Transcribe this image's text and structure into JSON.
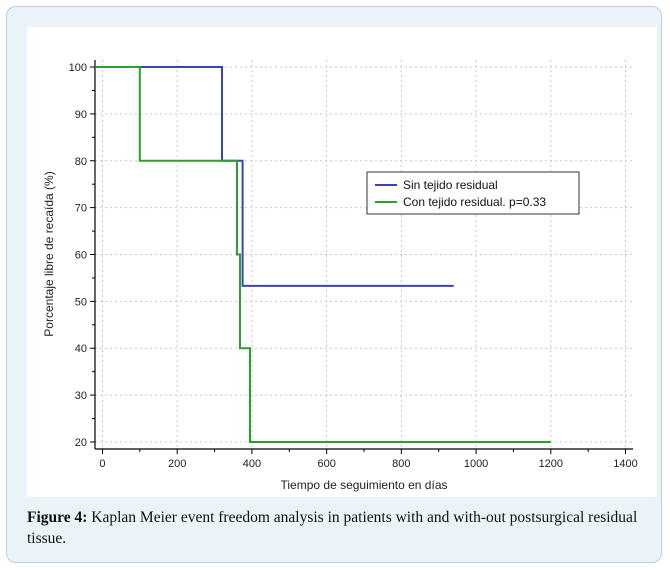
{
  "chart_data": {
    "type": "line",
    "xlabel": "Tiempo de seguimiento en días",
    "ylabel": "Porcentaje libre de recaída (%)",
    "xlim": [
      -20,
      1420
    ],
    "ylim": [
      18.5,
      101.5
    ],
    "xticks": [
      0,
      200,
      400,
      600,
      800,
      1000,
      1200,
      1400
    ],
    "yticks": [
      20,
      30,
      40,
      50,
      60,
      70,
      80,
      90,
      100
    ],
    "grid": true,
    "legend_position": "right-middle",
    "series": [
      {
        "name": "Sin tejido residual",
        "color": "#3a44b8",
        "step": true,
        "points": [
          [
            -20,
            100
          ],
          [
            320,
            100
          ],
          [
            320,
            80
          ],
          [
            375,
            80
          ],
          [
            375,
            53.3
          ],
          [
            940,
            53.3
          ]
        ]
      },
      {
        "name": "Con tejido residual. p=0.33",
        "color": "#2aa12a",
        "step": true,
        "points": [
          [
            -20,
            100
          ],
          [
            100,
            100
          ],
          [
            100,
            80
          ],
          [
            360,
            80
          ],
          [
            360,
            60
          ],
          [
            368,
            60
          ],
          [
            368,
            40
          ],
          [
            395,
            40
          ],
          [
            395,
            20
          ],
          [
            1200,
            20
          ]
        ]
      }
    ]
  },
  "caption": {
    "label": "Figure 4:",
    "text": "Kaplan Meier event freedom analysis in patients with and with-out postsurgical residual tissue."
  }
}
